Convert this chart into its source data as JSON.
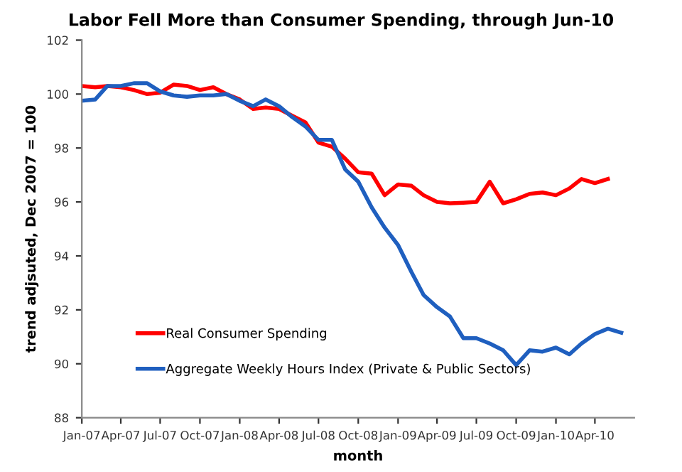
{
  "chart_data": {
    "type": "line",
    "title": "Labor Fell More than Consumer Spending, through Jun-10",
    "xlabel": "month",
    "ylabel": "trend adjsuted, Dec 2007 = 100",
    "x": [
      "2007-01",
      "2007-02",
      "2007-03",
      "2007-04",
      "2007-05",
      "2007-06",
      "2007-07",
      "2007-08",
      "2007-09",
      "2007-10",
      "2007-11",
      "2007-12",
      "2008-01",
      "2008-02",
      "2008-03",
      "2008-04",
      "2008-05",
      "2008-06",
      "2008-07",
      "2008-08",
      "2008-09",
      "2008-10",
      "2008-11",
      "2008-12",
      "2009-01",
      "2009-02",
      "2009-03",
      "2009-04",
      "2009-05",
      "2009-06",
      "2009-07",
      "2009-08",
      "2009-09",
      "2009-10",
      "2009-11",
      "2009-12",
      "2010-01",
      "2010-02",
      "2010-03",
      "2010-04",
      "2010-05",
      "2010-06"
    ],
    "series": [
      {
        "name": "Real Consumer Spending",
        "color": "#ff0000",
        "values": [
          100.3,
          100.25,
          100.3,
          100.25,
          100.15,
          100.0,
          100.05,
          100.35,
          100.3,
          100.15,
          100.25,
          100.0,
          99.8,
          99.45,
          99.5,
          99.45,
          99.2,
          98.95,
          98.2,
          98.05,
          97.6,
          97.1,
          97.05,
          96.25,
          96.65,
          96.6,
          96.25,
          96.0,
          95.95,
          95.97,
          96.0,
          96.75,
          95.95,
          96.1,
          96.3,
          96.35,
          96.25,
          96.5,
          96.85,
          96.7,
          96.85,
          null
        ]
      },
      {
        "name": "Aggregate Weekly Hours Index (Private & Public Sectors)",
        "color": "#1f5fbf",
        "values": [
          99.75,
          99.8,
          100.3,
          100.3,
          100.4,
          100.4,
          100.1,
          99.95,
          99.9,
          99.95,
          99.95,
          100.0,
          99.75,
          99.55,
          99.8,
          99.55,
          99.15,
          98.8,
          98.3,
          98.3,
          97.2,
          96.75,
          95.8,
          95.05,
          94.4,
          93.4,
          92.55,
          92.1,
          91.75,
          90.95,
          90.95,
          90.75,
          90.5,
          89.95,
          90.5,
          90.45,
          90.6,
          90.35,
          90.75,
          91.1,
          91.3,
          91.15
        ]
      }
    ],
    "xlim": [
      "2007-01",
      "2010-07"
    ],
    "xticks": [
      {
        "value": "2007-01",
        "label": "Jan-07"
      },
      {
        "value": "2007-04",
        "label": "Apr-07"
      },
      {
        "value": "2007-07",
        "label": "Jul-07"
      },
      {
        "value": "2007-10",
        "label": "Oct-07"
      },
      {
        "value": "2008-01",
        "label": "Jan-08"
      },
      {
        "value": "2008-04",
        "label": "Apr-08"
      },
      {
        "value": "2008-07",
        "label": "Jul-08"
      },
      {
        "value": "2008-10",
        "label": "Oct-08"
      },
      {
        "value": "2009-01",
        "label": "Jan-09"
      },
      {
        "value": "2009-04",
        "label": "Apr-09"
      },
      {
        "value": "2009-07",
        "label": "Jul-09"
      },
      {
        "value": "2009-10",
        "label": "Oct-09"
      },
      {
        "value": "2010-01",
        "label": "Jan-10"
      },
      {
        "value": "2010-04",
        "label": "Apr-10"
      }
    ],
    "ylim": [
      88,
      102
    ],
    "yticks": [
      88,
      90,
      92,
      94,
      96,
      98,
      100,
      102
    ],
    "grid": false,
    "legend": "bottom left",
    "marker": "none",
    "line_style": "solid"
  }
}
